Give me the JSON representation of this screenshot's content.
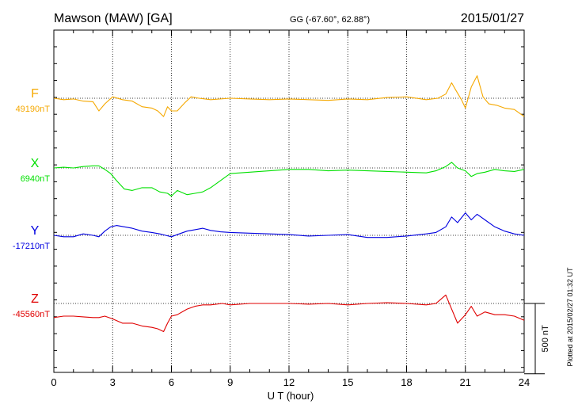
{
  "header": {
    "station": "Mawson (MAW)  [GA]",
    "coords": "GG (-67.60°,  62.88°)",
    "date": "2015/01/27"
  },
  "footer": {
    "plotted_note": "Plotted at 2015/02/27 01:32 UT"
  },
  "chart_data": {
    "type": "line",
    "title": "",
    "xlabel": "U T (hour)",
    "ylabel": "",
    "xlim": [
      0,
      24
    ],
    "xticks": [
      "0",
      "3",
      "6",
      "9",
      "12",
      "15",
      "18",
      "21",
      "24"
    ],
    "scale_bar": {
      "label": "500 nT",
      "value_nT": 500
    },
    "grid": "dotted vertical every 3 h; dotted baseline per component",
    "units": "nT",
    "series": [
      {
        "name": "F",
        "baseline_label": "49190nT",
        "baseline_nT": 49190,
        "color": "#f5a800",
        "x": [
          0,
          0.5,
          1,
          1.5,
          2,
          2.3,
          2.6,
          3,
          3.5,
          4,
          4.5,
          5,
          5.3,
          5.6,
          5.8,
          6,
          6.3,
          6.7,
          7,
          7.4,
          8,
          9,
          10,
          11,
          12,
          13,
          14,
          15,
          16,
          17,
          18,
          19,
          19.6,
          20,
          20.3,
          20.5,
          20.8,
          21,
          21.3,
          21.6,
          21.9,
          22.2,
          22.6,
          23,
          23.5,
          24
        ],
        "y": [
          49190,
          49180,
          49185,
          49170,
          49165,
          49100,
          49150,
          49200,
          49180,
          49170,
          49130,
          49120,
          49100,
          49060,
          49130,
          49100,
          49100,
          49160,
          49200,
          49190,
          49180,
          49190,
          49185,
          49180,
          49185,
          49180,
          49175,
          49185,
          49180,
          49195,
          49200,
          49180,
          49190,
          49220,
          49300,
          49250,
          49180,
          49120,
          49270,
          49350,
          49200,
          49150,
          49140,
          49120,
          49110,
          49060
        ]
      },
      {
        "name": "X",
        "baseline_label": "6940nT",
        "baseline_nT": 6940,
        "color": "#00e000",
        "x": [
          0,
          0.5,
          1,
          1.5,
          2,
          2.3,
          2.6,
          2.9,
          3.2,
          3.6,
          4,
          4.5,
          5,
          5.4,
          5.8,
          6,
          6.3,
          6.8,
          7.2,
          7.6,
          8,
          8.6,
          9,
          10,
          11,
          12,
          13,
          14,
          15,
          16,
          17,
          18,
          19,
          19.5,
          20,
          20.3,
          20.6,
          21,
          21.3,
          21.6,
          22,
          22.5,
          23,
          23.5,
          24
        ],
        "y": [
          6940,
          6945,
          6940,
          6950,
          6955,
          6955,
          6930,
          6900,
          6850,
          6790,
          6780,
          6800,
          6800,
          6770,
          6760,
          6740,
          6780,
          6750,
          6760,
          6770,
          6800,
          6860,
          6900,
          6910,
          6920,
          6930,
          6930,
          6920,
          6925,
          6920,
          6915,
          6910,
          6905,
          6920,
          6950,
          6980,
          6940,
          6920,
          6880,
          6900,
          6910,
          6930,
          6920,
          6915,
          6930
        ]
      },
      {
        "name": "Y",
        "baseline_label": "-17210nT",
        "baseline_nT": -17210,
        "color": "#0000e0",
        "x": [
          0,
          0.5,
          1,
          1.5,
          2,
          2.3,
          2.6,
          2.9,
          3.2,
          3.6,
          4,
          4.5,
          5,
          5.4,
          5.7,
          6,
          6.4,
          6.8,
          7.2,
          7.6,
          8,
          8.5,
          9,
          10,
          11,
          12,
          13,
          14,
          15,
          16,
          17,
          18,
          19,
          19.5,
          20,
          20.3,
          20.6,
          21,
          21.3,
          21.6,
          22,
          22.5,
          23,
          23.5,
          24
        ],
        "y": [
          -17210,
          -17220,
          -17220,
          -17200,
          -17210,
          -17220,
          -17180,
          -17150,
          -17140,
          -17150,
          -17160,
          -17180,
          -17190,
          -17200,
          -17210,
          -17220,
          -17200,
          -17180,
          -17170,
          -17160,
          -17175,
          -17185,
          -17190,
          -17195,
          -17200,
          -17205,
          -17215,
          -17210,
          -17205,
          -17225,
          -17225,
          -17215,
          -17200,
          -17190,
          -17150,
          -17080,
          -17120,
          -17050,
          -17100,
          -17060,
          -17100,
          -17150,
          -17180,
          -17200,
          -17210
        ]
      },
      {
        "name": "Z",
        "baseline_label": "-45560nT",
        "baseline_nT": -45560,
        "color": "#e00000",
        "x": [
          0,
          0.5,
          1,
          1.5,
          2,
          2.3,
          2.6,
          3,
          3.5,
          4,
          4.5,
          5,
          5.3,
          5.6,
          5.8,
          6,
          6.3,
          6.8,
          7.2,
          7.6,
          8,
          8.6,
          9,
          10,
          11,
          12,
          13,
          14,
          15,
          16,
          17,
          18,
          19,
          19.5,
          20,
          20.3,
          20.6,
          21,
          21.3,
          21.6,
          22,
          22.5,
          23,
          23.5,
          24
        ],
        "y": [
          -45660,
          -45650,
          -45650,
          -45655,
          -45660,
          -45660,
          -45650,
          -45670,
          -45700,
          -45700,
          -45720,
          -45730,
          -45740,
          -45760,
          -45700,
          -45650,
          -45640,
          -45600,
          -45580,
          -45570,
          -45570,
          -45560,
          -45570,
          -45560,
          -45560,
          -45560,
          -45565,
          -45560,
          -45570,
          -45560,
          -45555,
          -45560,
          -45570,
          -45560,
          -45500,
          -45600,
          -45700,
          -45640,
          -45580,
          -45650,
          -45620,
          -45640,
          -45640,
          -45650,
          -45680
        ]
      }
    ]
  }
}
